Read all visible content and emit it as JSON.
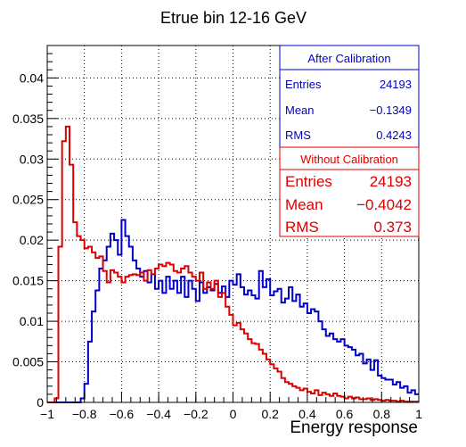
{
  "chart_data": {
    "type": "histogram",
    "title": "Etrue bin 12-16 GeV",
    "xlabel": "Energy response",
    "ylabel": "",
    "xlim": [
      -1,
      1
    ],
    "ylim": [
      0,
      0.044
    ],
    "grid": true,
    "x_ticks": [
      "−1",
      "−0.8",
      "−0.6",
      "−0.4",
      "−0.2",
      "0",
      "0.2",
      "0.4",
      "0.6",
      "0.8",
      "1"
    ],
    "y_ticks": [
      "0",
      "0.005",
      "0.01",
      "0.015",
      "0.02",
      "0.025",
      "0.03",
      "0.035",
      "0.04"
    ],
    "bin_width": 0.02,
    "x_start": -1.0,
    "series": [
      {
        "name": "After Calibration",
        "color": "#0000cc",
        "stats": {
          "entries_label": "Entries",
          "entries": "24193",
          "mean_label": "Mean",
          "mean": "−0.1349",
          "rms_label": "RMS",
          "rms": "0.4243"
        },
        "values": [
          0,
          0,
          0,
          0,
          0,
          0,
          0,
          0,
          0,
          0.0005,
          0.0023,
          0.0075,
          0.0112,
          0.0138,
          0.0165,
          0.0175,
          0.0192,
          0.0208,
          0.02,
          0.0182,
          0.0225,
          0.0205,
          0.0192,
          0.0175,
          0.0165,
          0.0155,
          0.0162,
          0.0148,
          0.0158,
          0.014,
          0.015,
          0.0135,
          0.0155,
          0.014,
          0.015,
          0.0135,
          0.0155,
          0.013,
          0.015,
          0.014,
          0.0125,
          0.0148,
          0.0135,
          0.0142,
          0.0138,
          0.0146,
          0.0135,
          0.0143,
          0.013,
          0.015,
          0.0145,
          0.0158,
          0.0142,
          0.0133,
          0.0138,
          0.0132,
          0.0128,
          0.0162,
          0.0142,
          0.0152,
          0.0132,
          0.0137,
          0.014,
          0.0123,
          0.0128,
          0.0142,
          0.0125,
          0.0133,
          0.0118,
          0.0122,
          0.011,
          0.0115,
          0.0112,
          0.01,
          0.009,
          0.0082,
          0.0085,
          0.0078,
          0.0075,
          0.0078,
          0.007,
          0.0068,
          0.0065,
          0.0058,
          0.006,
          0.0048,
          0.0053,
          0.004,
          0.0052,
          0.0033,
          0.003,
          0.0028,
          0.0028,
          0.0022,
          0.0025,
          0.0018,
          0.002,
          0.0012,
          0.0015,
          0.001
        ]
      },
      {
        "name": "Without Calibration",
        "color": "#dd0000",
        "stats": {
          "entries_label": "Entries",
          "entries": "24193",
          "mean_label": "Mean",
          "mean": "−0.4042",
          "rms_label": "RMS",
          "rms": "0.373"
        },
        "values": [
          0,
          0,
          0.0005,
          0.0192,
          0.0322,
          0.034,
          0.0293,
          0.0222,
          0.0205,
          0.02,
          0.019,
          0.0192,
          0.0185,
          0.0178,
          0.018,
          0.0162,
          0.0148,
          0.0163,
          0.016,
          0.0155,
          0.0148,
          0.0155,
          0.0157,
          0.0158,
          0.0157,
          0.016,
          0.015,
          0.0163,
          0.0158,
          0.0165,
          0.017,
          0.0168,
          0.0172,
          0.017,
          0.0162,
          0.016,
          0.0165,
          0.0168,
          0.016,
          0.0155,
          0.015,
          0.016,
          0.014,
          0.0148,
          0.014,
          0.015,
          0.013,
          0.0135,
          0.0118,
          0.0108,
          0.0095,
          0.0098,
          0.009,
          0.0085,
          0.0078,
          0.0073,
          0.0072,
          0.0065,
          0.006,
          0.0053,
          0.0047,
          0.0042,
          0.0038,
          0.003,
          0.0025,
          0.0023,
          0.002,
          0.0018,
          0.0015,
          0.0017,
          0.0013,
          0.0011,
          0.0015,
          0.0009,
          0.0012,
          0.001,
          0.0008,
          0.0011,
          0.0008,
          0.0007,
          0.0005,
          0.0007,
          0.0005,
          0.0006,
          0.0004,
          0.0004,
          0.0005,
          0.0003,
          0.0004,
          0.0003,
          0.0002,
          0.0003,
          0.0002,
          0.0002,
          0.0001,
          0.0002,
          0.0001,
          0.0001,
          0.0001,
          0.0001
        ]
      }
    ]
  }
}
